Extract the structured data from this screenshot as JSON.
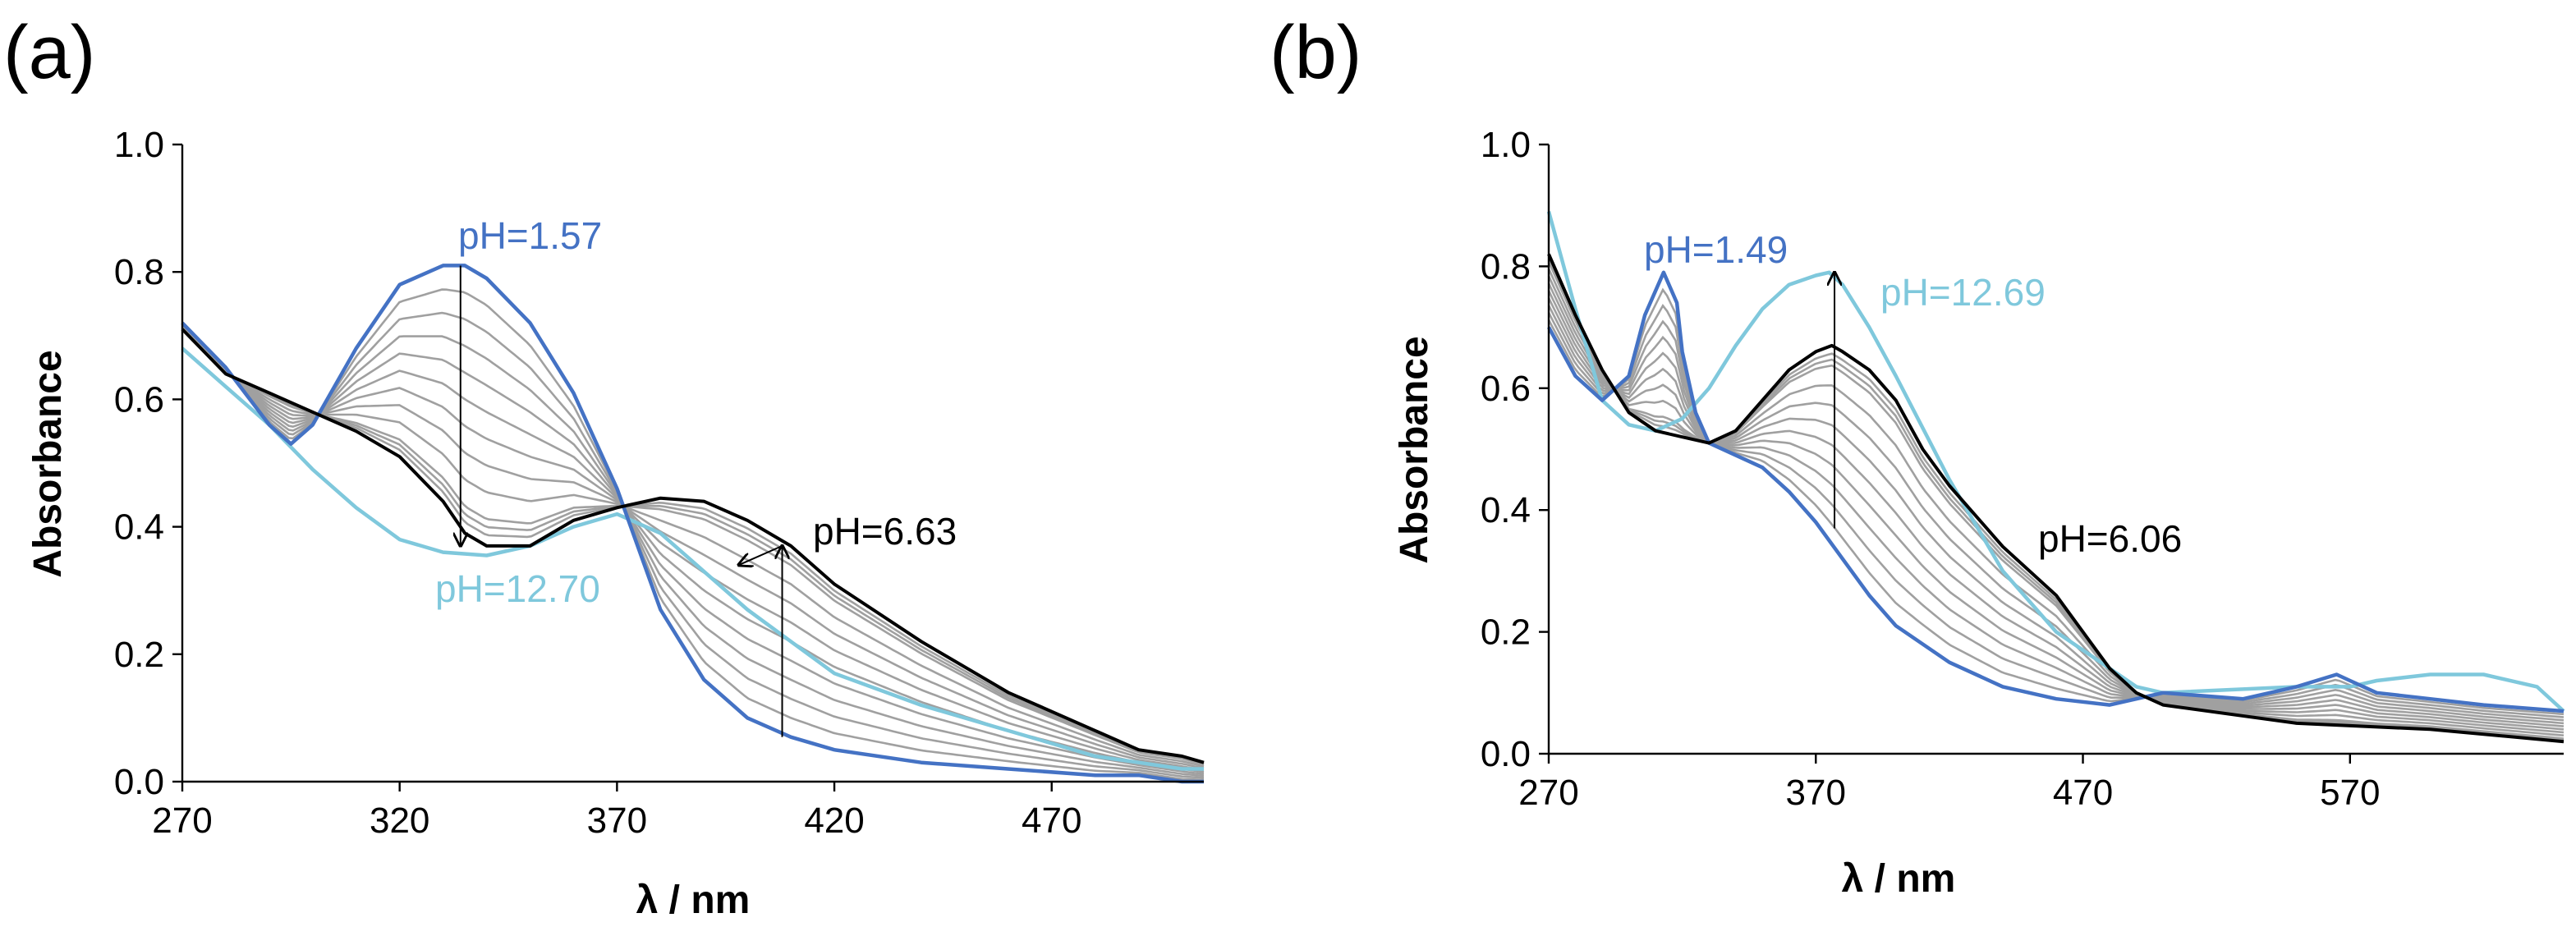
{
  "chart_data": [
    {
      "panel": "(a)",
      "type": "line",
      "xlabel": "λ / nm",
      "ylabel": "Absorbance",
      "xlim": [
        270,
        505
      ],
      "ylim": [
        0,
        1.0
      ],
      "xticks": [
        270,
        320,
        370,
        420,
        470
      ],
      "yticks": [
        "0.0",
        "0.2",
        "0.4",
        "0.6",
        "0.8",
        "1.0"
      ],
      "colors": {
        "acid": "#4472C4",
        "base": "#7FC8DC",
        "mid": "#000000",
        "grey": "#A0A0A0"
      },
      "series": [
        {
          "name": "pH=1.57",
          "role": "acid",
          "x": [
            270,
            280,
            290,
            295,
            300,
            310,
            320,
            330,
            335,
            340,
            350,
            360,
            370,
            380,
            390,
            400,
            410,
            420,
            440,
            460,
            480,
            490,
            500,
            505
          ],
          "y": [
            0.72,
            0.65,
            0.56,
            0.53,
            0.56,
            0.68,
            0.78,
            0.81,
            0.81,
            0.79,
            0.72,
            0.61,
            0.46,
            0.27,
            0.16,
            0.1,
            0.07,
            0.05,
            0.03,
            0.02,
            0.01,
            0.01,
            0.0,
            0.0
          ]
        },
        {
          "name": "pH=12.70",
          "role": "base",
          "x": [
            270,
            280,
            290,
            300,
            310,
            320,
            330,
            340,
            350,
            360,
            370,
            380,
            390,
            400,
            410,
            420,
            440,
            460,
            480,
            490,
            500,
            505
          ],
          "y": [
            0.68,
            0.62,
            0.56,
            0.49,
            0.43,
            0.38,
            0.36,
            0.355,
            0.37,
            0.4,
            0.42,
            0.39,
            0.33,
            0.27,
            0.22,
            0.17,
            0.12,
            0.08,
            0.04,
            0.03,
            0.02,
            0.02
          ]
        },
        {
          "name": "pH=6.63",
          "role": "mid",
          "x": [
            270,
            280,
            290,
            300,
            310,
            320,
            330,
            335,
            340,
            350,
            360,
            370,
            380,
            390,
            400,
            410,
            420,
            440,
            460,
            480,
            490,
            500,
            505
          ],
          "y": [
            0.71,
            0.64,
            0.61,
            0.58,
            0.55,
            0.51,
            0.44,
            0.39,
            0.37,
            0.37,
            0.41,
            0.43,
            0.445,
            0.44,
            0.41,
            0.37,
            0.31,
            0.22,
            0.14,
            0.08,
            0.05,
            0.04,
            0.03
          ]
        }
      ],
      "grey_blend_weights": [
        0.1,
        0.2,
        0.3,
        0.4,
        0.5,
        0.6,
        0.7,
        0.8,
        0.9,
        0.93,
        0.96
      ],
      "annotations": [
        {
          "text": "pH=1.57",
          "role": "acid"
        },
        {
          "text": "pH=12.70",
          "role": "base"
        },
        {
          "text": "pH=6.63",
          "role": "mid"
        }
      ],
      "arrows": [
        {
          "from": [
            334,
            0.81
          ],
          "to": [
            334,
            0.37
          ]
        },
        {
          "from": [
            408,
            0.07
          ],
          "to": [
            408,
            0.37
          ]
        },
        {
          "from": [
            408,
            0.37
          ],
          "to": [
            398,
            0.34
          ]
        }
      ]
    },
    {
      "panel": "(b)",
      "type": "line",
      "xlabel": "λ / nm",
      "ylabel": "Absorbance",
      "xlim": [
        270,
        650
      ],
      "ylim": [
        0,
        1.0
      ],
      "xticks": [
        270,
        370,
        470,
        570
      ],
      "yticks": [
        "0.0",
        "0.2",
        "0.4",
        "0.6",
        "0.8",
        "1.0"
      ],
      "colors": {
        "acid": "#4472C4",
        "base": "#7FC8DC",
        "mid": "#000000",
        "grey": "#A0A0A0"
      },
      "series": [
        {
          "name": "pH=1.49",
          "role": "acid",
          "x": [
            270,
            280,
            290,
            300,
            306,
            313,
            318,
            320,
            325,
            330,
            340,
            350,
            360,
            370,
            380,
            390,
            400,
            420,
            440,
            460,
            480,
            490,
            500,
            530,
            550,
            565,
            570,
            580,
            600,
            620,
            650
          ],
          "y": [
            0.7,
            0.62,
            0.58,
            0.62,
            0.72,
            0.79,
            0.74,
            0.66,
            0.56,
            0.51,
            0.49,
            0.47,
            0.43,
            0.38,
            0.32,
            0.26,
            0.21,
            0.15,
            0.11,
            0.09,
            0.08,
            0.09,
            0.1,
            0.09,
            0.11,
            0.13,
            0.12,
            0.1,
            0.09,
            0.08,
            0.07
          ]
        },
        {
          "name": "pH=12.69",
          "role": "base",
          "x": [
            270,
            280,
            290,
            300,
            310,
            320,
            330,
            340,
            350,
            360,
            370,
            375,
            380,
            390,
            400,
            420,
            440,
            460,
            480,
            490,
            500,
            550,
            570,
            580,
            600,
            620,
            640,
            650
          ],
          "y": [
            0.89,
            0.73,
            0.58,
            0.54,
            0.53,
            0.55,
            0.6,
            0.67,
            0.73,
            0.77,
            0.785,
            0.79,
            0.77,
            0.7,
            0.62,
            0.45,
            0.3,
            0.2,
            0.14,
            0.11,
            0.1,
            0.11,
            0.11,
            0.12,
            0.13,
            0.13,
            0.11,
            0.07
          ]
        },
        {
          "name": "pH=6.06",
          "role": "mid",
          "x": [
            270,
            280,
            290,
            300,
            310,
            320,
            330,
            340,
            350,
            360,
            370,
            376,
            380,
            390,
            400,
            410,
            420,
            440,
            460,
            470,
            480,
            490,
            500,
            550,
            600,
            650
          ],
          "y": [
            0.82,
            0.72,
            0.63,
            0.56,
            0.53,
            0.52,
            0.51,
            0.53,
            0.58,
            0.63,
            0.66,
            0.67,
            0.66,
            0.63,
            0.58,
            0.5,
            0.44,
            0.34,
            0.26,
            0.2,
            0.14,
            0.1,
            0.08,
            0.05,
            0.04,
            0.02
          ]
        }
      ],
      "grey_blend_weights": [
        0.1,
        0.2,
        0.3,
        0.4,
        0.5,
        0.6,
        0.7,
        0.8,
        0.9,
        0.93,
        0.96
      ],
      "annotations": [
        {
          "text": "pH=1.49",
          "role": "acid"
        },
        {
          "text": "pH=12.69",
          "role": "base"
        },
        {
          "text": "pH=6.06",
          "role": "mid"
        }
      ],
      "arrows": [
        {
          "from": [
            377,
            0.37
          ],
          "to": [
            377,
            0.79
          ]
        }
      ]
    }
  ]
}
